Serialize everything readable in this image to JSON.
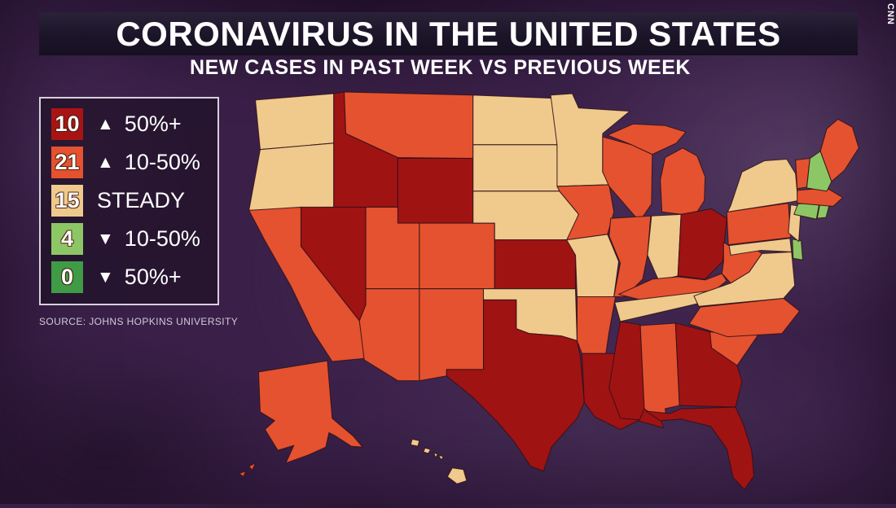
{
  "brand": {
    "logo": "CNN"
  },
  "header": {
    "title": "CORONAVIRUS IN THE UNITED STATES",
    "subtitle": "NEW CASES IN PAST WEEK VS PREVIOUS WEEK"
  },
  "source": {
    "text": "SOURCE: JOHNS HOPKINS UNIVERSITY"
  },
  "palette": {
    "background": "#3a2048",
    "title_band": "#1c1529",
    "red_bar": "#d20a0c",
    "up-50": "#a01313",
    "up-10-50": "#e5522f",
    "steady": "#f0ca8c",
    "down-10-50": "#8dc765",
    "down-50": "#3f9b45",
    "state_border": "#30101a"
  },
  "legend": {
    "items": [
      {
        "count": "10",
        "icon": "▲",
        "direction": "up",
        "label": "50%+",
        "category": "up-50",
        "color": "#a81414"
      },
      {
        "count": "21",
        "icon": "▲",
        "direction": "up",
        "label": "10-50%",
        "category": "up-10-50",
        "color": "#e5522f"
      },
      {
        "count": "15",
        "icon": "",
        "direction": "steady",
        "label": "STEADY",
        "category": "steady",
        "color": "#f0ca8c"
      },
      {
        "count": "4",
        "icon": "▼",
        "direction": "down",
        "label": "10-50%",
        "category": "down-10-50",
        "color": "#8dc765"
      },
      {
        "count": "0",
        "icon": "▼",
        "direction": "down",
        "label": "50%+",
        "category": "down-50",
        "color": "#3f9b45"
      }
    ]
  },
  "chart_data": {
    "type": "choropleth",
    "title": "CORONAVIRUS IN THE UNITED STATES",
    "subtitle": "NEW CASES IN PAST WEEK VS PREVIOUS WEEK",
    "source": "JOHNS HOPKINS UNIVERSITY",
    "legend_position": "left",
    "categories": [
      {
        "id": "up-50",
        "label": "▲ 50%+",
        "count": 10,
        "color": "#a01313"
      },
      {
        "id": "up-10-50",
        "label": "▲ 10-50%",
        "count": 21,
        "color": "#e5522f"
      },
      {
        "id": "steady",
        "label": "STEADY",
        "count": 15,
        "color": "#f0ca8c"
      },
      {
        "id": "down-10-50",
        "label": "▼ 10-50%",
        "count": 4,
        "color": "#8dc765"
      },
      {
        "id": "down-50",
        "label": "▼ 50%+",
        "count": 0,
        "color": "#3f9b45"
      }
    ],
    "states": {
      "WA": "steady",
      "OR": "steady",
      "CA": "up-10-50",
      "NV": "up-50",
      "ID": "up-50",
      "MT": "up-10-50",
      "WY": "up-50",
      "UT": "up-10-50",
      "CO": "up-10-50",
      "AZ": "up-10-50",
      "NM": "up-10-50",
      "ND": "steady",
      "SD": "steady",
      "NE": "steady",
      "KS": "up-50",
      "OK": "steady",
      "TX": "up-50",
      "MN": "steady",
      "IA": "up-10-50",
      "MO": "steady",
      "AR": "up-10-50",
      "LA": "up-50",
      "WI": "up-10-50",
      "IL": "up-10-50",
      "MS": "up-50",
      "MI": "up-10-50",
      "IN": "steady",
      "OH": "up-50",
      "KY": "up-10-50",
      "TN": "steady",
      "AL": "up-10-50",
      "GA": "up-50",
      "FL": "up-50",
      "SC": "up-10-50",
      "NC": "up-10-50",
      "VA": "steady",
      "WV": "up-10-50",
      "MD": "steady",
      "DE": "down-10-50",
      "PA": "up-10-50",
      "NJ": "steady",
      "NY": "steady",
      "CT": "down-10-50",
      "RI": "down-10-50",
      "MA": "up-10-50",
      "VT": "up-10-50",
      "NH": "down-10-50",
      "ME": "up-10-50",
      "AK": "up-10-50",
      "HI": "steady"
    }
  }
}
